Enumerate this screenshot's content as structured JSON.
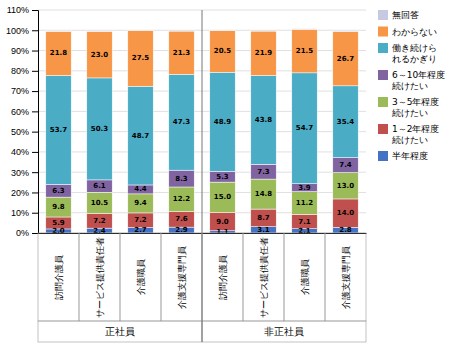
{
  "chart_data": {
    "type": "bar",
    "stacked": true,
    "categories": [
      "訪問介護員",
      "サービス提供責任者",
      "介護職員",
      "介護支援専門員",
      "訪問介護員",
      "サービス提供責任者",
      "介護職員",
      "介護支援専門員"
    ],
    "groups": [
      "正社員",
      "非正社員"
    ],
    "series": [
      {
        "name": "半年程度",
        "color": "#4472C4",
        "values": [
          2.0,
          2.4,
          2.7,
          2.9,
          1.1,
          3.1,
          2.1,
          2.8
        ],
        "value_labels": [
          "2.0",
          "2.4",
          "2.7",
          "2.9",
          "1.1",
          "3.1",
          "2.1",
          "2.8"
        ]
      },
      {
        "name": "1～2年程度\n続けたい",
        "color": "#C0504D",
        "values": [
          5.9,
          7.2,
          7.2,
          7.6,
          9.0,
          8.7,
          7.1,
          14.0
        ],
        "value_labels": [
          "5.9",
          "7.2",
          "7.2",
          "7.6",
          "9.0",
          "8.7",
          "7.1",
          "14.0"
        ]
      },
      {
        "name": "3～5年程度\n続けたい",
        "color": "#9BBB59",
        "values": [
          9.8,
          10.5,
          9.4,
          12.2,
          15.0,
          14.8,
          11.2,
          13.0
        ],
        "value_labels": [
          "9.8",
          "10.5",
          "9.4",
          "12.2",
          "15.0",
          "14.8",
          "11.2",
          "13.0"
        ]
      },
      {
        "name": "6～10年程度\n続けたい",
        "color": "#8064A2",
        "values": [
          6.3,
          6.1,
          4.4,
          8.3,
          5.3,
          7.3,
          3.9,
          7.4
        ],
        "value_labels": [
          "6.3",
          "6.1",
          "4.4",
          "8.3",
          "5.3",
          "7.3",
          "3.9",
          "7.4"
        ]
      },
      {
        "name": "働き続けら\nれるかぎり",
        "color": "#4BACC6",
        "values": [
          53.7,
          50.3,
          48.7,
          47.3,
          48.9,
          43.8,
          54.7,
          35.4
        ],
        "value_labels": [
          "53.7",
          "50.3",
          "48.7",
          "47.3",
          "48.9",
          "43.8",
          "54.7",
          "35.4"
        ]
      },
      {
        "name": "わからない",
        "color": "#F79646",
        "values": [
          21.8,
          23.0,
          27.5,
          21.3,
          20.5,
          21.9,
          21.5,
          26.7
        ],
        "value_labels": [
          "21.8",
          "23.0",
          "27.5",
          "21.3",
          "20.5",
          "21.9",
          "21.5",
          "26.7"
        ]
      },
      {
        "name": "無回答",
        "color": "#C8C8E0",
        "values": [
          0.4,
          0.5,
          0.2,
          0.5,
          0.2,
          0.5,
          0.3,
          0.7
        ],
        "value_labels": [
          null,
          null,
          null,
          null,
          null,
          null,
          null,
          null
        ]
      }
    ],
    "ylim": [
      0,
      110
    ],
    "yticks": [
      {
        "value": 0,
        "label": "0%"
      },
      {
        "value": 10,
        "label": "10%"
      },
      {
        "value": 20,
        "label": "20%"
      },
      {
        "value": 30,
        "label": "30%"
      },
      {
        "value": 40,
        "label": "40%"
      },
      {
        "value": 50,
        "label": "50%"
      },
      {
        "value": 60,
        "label": "60%"
      },
      {
        "value": 70,
        "label": "70%"
      },
      {
        "value": 80,
        "label": "80%"
      },
      {
        "value": 90,
        "label": "90%"
      },
      {
        "value": 100,
        "label": "100%"
      },
      {
        "value": 110,
        "label": "110%"
      }
    ],
    "grid": true,
    "legend": "right",
    "data_labels": true
  }
}
